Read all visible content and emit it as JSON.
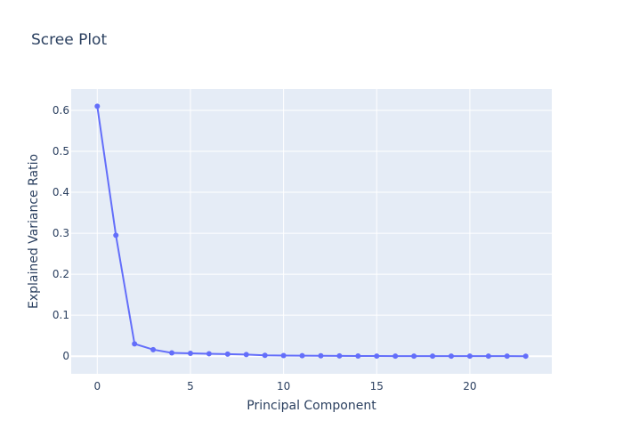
{
  "chart_data": {
    "type": "line",
    "title": "Scree Plot",
    "xlabel": "Principal Component",
    "ylabel": "Explained Variance Ratio",
    "xlim": [
      -1.4,
      24.4
    ],
    "ylim": [
      -0.043,
      0.652
    ],
    "xticks": [
      0,
      5,
      10,
      15,
      20
    ],
    "yticks": [
      0,
      0.1,
      0.2,
      0.3,
      0.4,
      0.5,
      0.6
    ],
    "xtick_labels": [
      "0",
      "5",
      "10",
      "15",
      "20"
    ],
    "ytick_labels": [
      "0",
      "0.1",
      "0.2",
      "0.3",
      "0.4",
      "0.5",
      "0.6"
    ],
    "grid": true,
    "legend": false,
    "colors": {
      "line": "#636efa",
      "plot_bg": "#e5ecf6",
      "grid": "#ffffff",
      "text": "#2a3f5f"
    },
    "series": [
      {
        "x": [
          0,
          1,
          2,
          3,
          4,
          5,
          6,
          7,
          8,
          9,
          10,
          11,
          12,
          13,
          14,
          15,
          16,
          17,
          18,
          19,
          20,
          21,
          22,
          23
        ],
        "values": [
          0.61,
          0.295,
          0.03,
          0.016,
          0.008,
          0.007,
          0.006,
          0.005,
          0.004,
          0.002,
          0.0015,
          0.0012,
          0.0009,
          0.0006,
          0.0004,
          0.0003,
          0.0002,
          0.0002,
          0.0001,
          0.0001,
          0.0001,
          0.0001,
          5e-05,
          3e-05
        ]
      }
    ]
  }
}
